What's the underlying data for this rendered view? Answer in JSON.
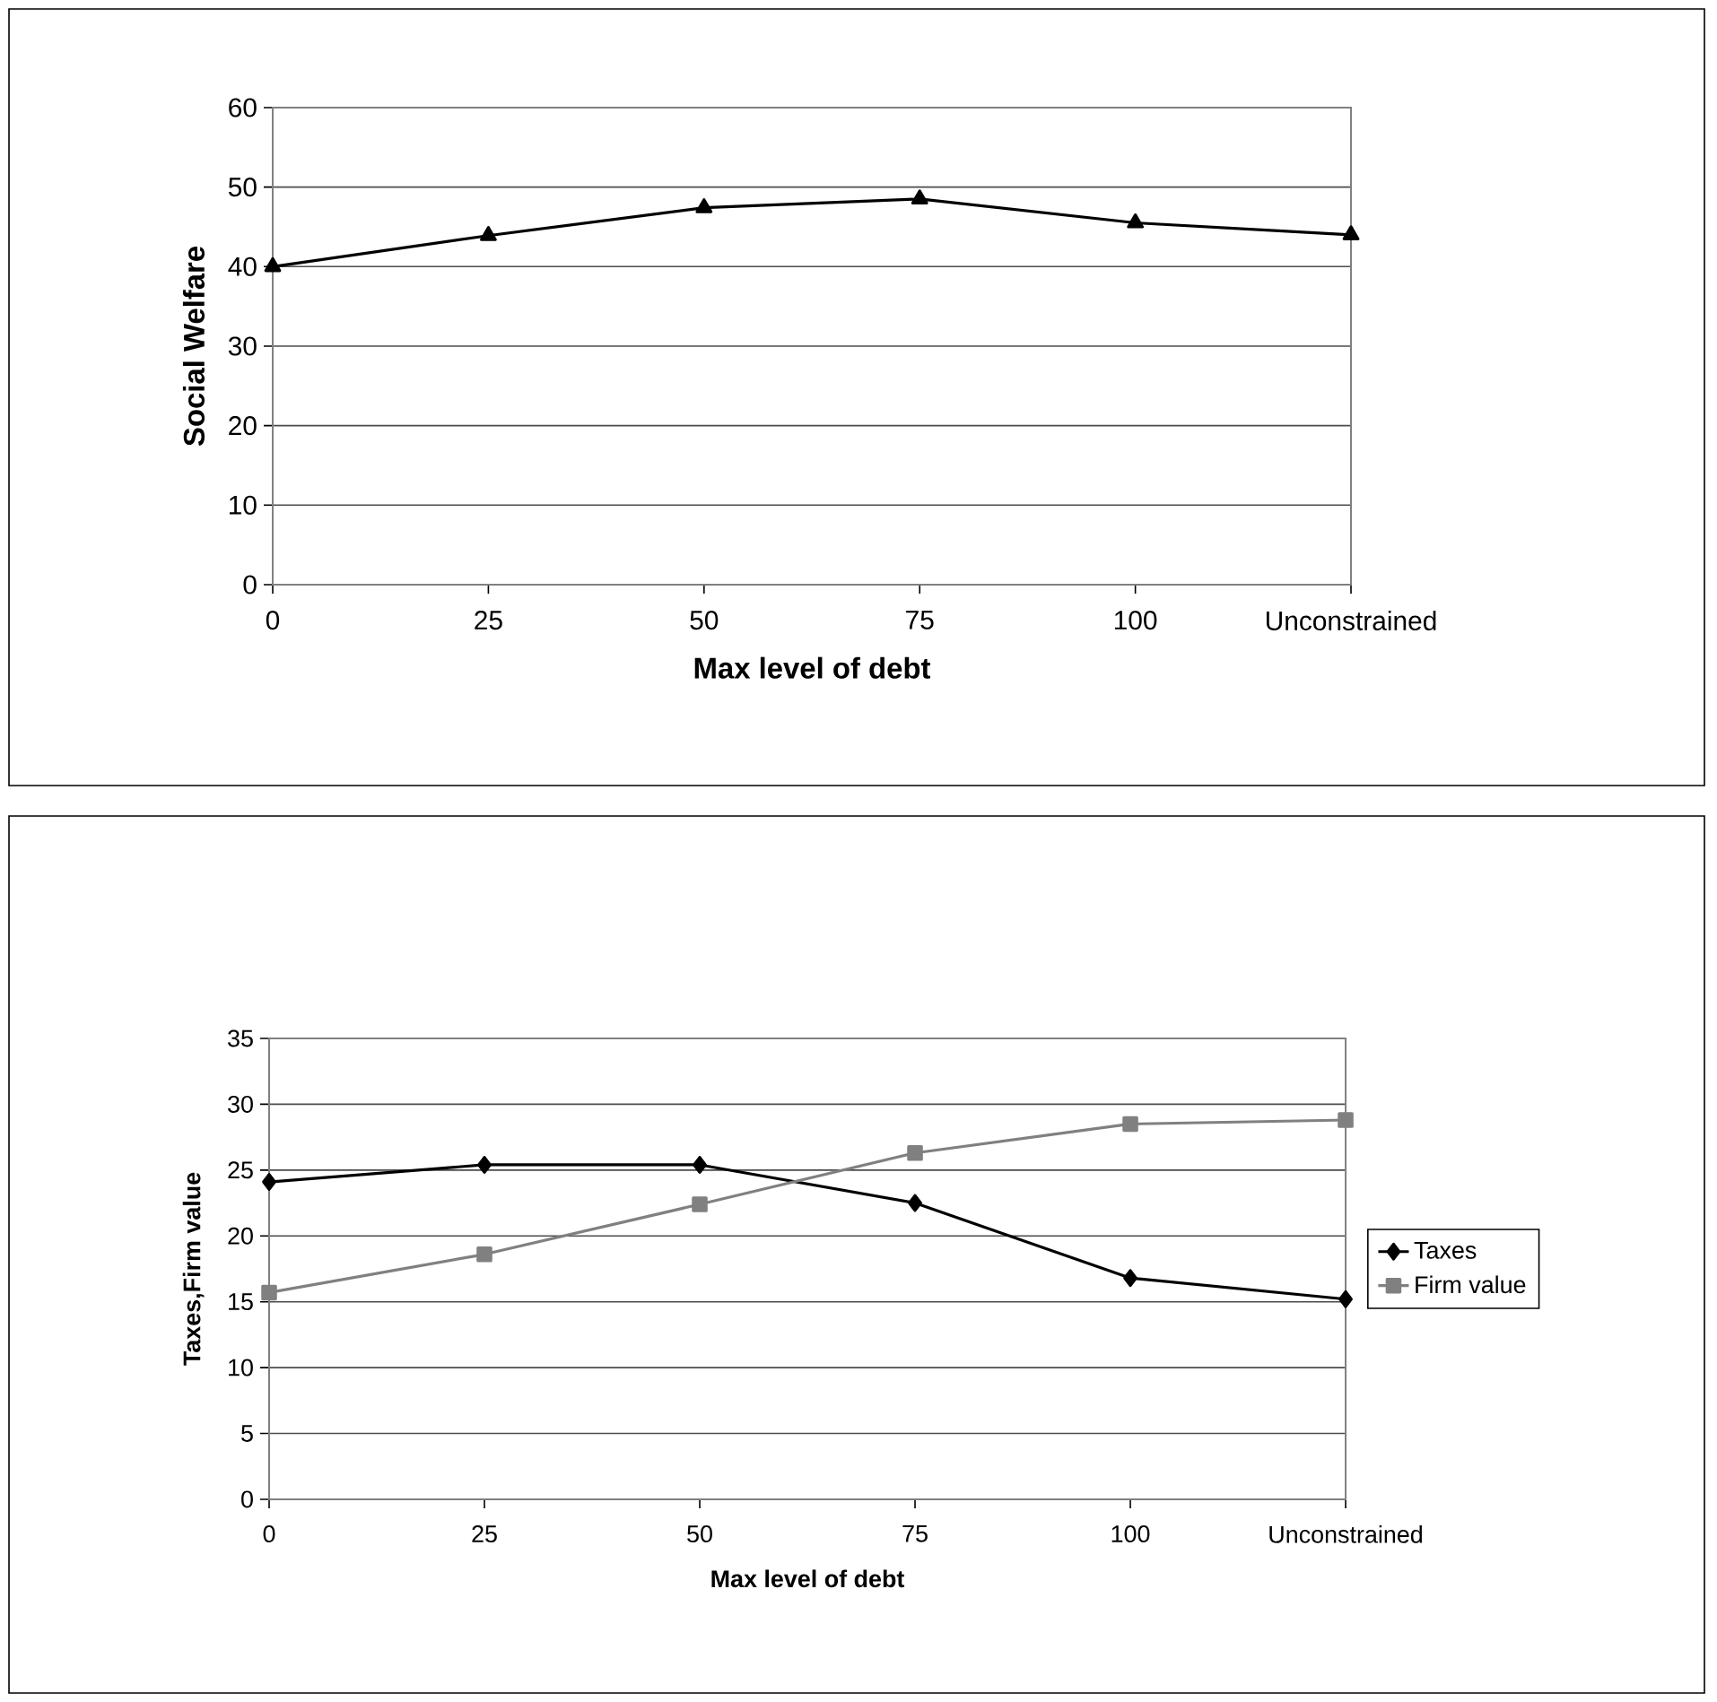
{
  "chart_data": [
    {
      "type": "line",
      "categories": [
        "0",
        "25",
        "50",
        "75",
        "100",
        "Unconstrained"
      ],
      "xlabel": "Max level of debt",
      "ylabel": "Social Welfare",
      "ylim": [
        0,
        60
      ],
      "yticks": [
        0,
        10,
        20,
        30,
        40,
        50,
        60
      ],
      "grid": "y",
      "series": [
        {
          "color": "#000000",
          "marker": "triangle",
          "values": [
            40,
            43.9,
            47.4,
            48.5,
            45.5,
            44
          ]
        }
      ]
    },
    {
      "type": "line",
      "categories": [
        "0",
        "25",
        "50",
        "75",
        "100",
        "Unconstrained"
      ],
      "xlabel": "Max level of debt",
      "ylabel": "Taxes,Firm value",
      "ylim": [
        0,
        35
      ],
      "yticks": [
        0,
        5,
        10,
        15,
        20,
        25,
        30,
        35
      ],
      "grid": "y",
      "legend": "right",
      "series": [
        {
          "name": "Taxes",
          "color": "#000000",
          "marker": "diamond",
          "values": [
            24.1,
            25.4,
            25.4,
            22.5,
            16.8,
            15.2
          ]
        },
        {
          "name": "Firm value",
          "color": "#808080",
          "marker": "square",
          "values": [
            15.7,
            18.6,
            22.4,
            26.3,
            28.5,
            28.8
          ]
        }
      ]
    }
  ]
}
